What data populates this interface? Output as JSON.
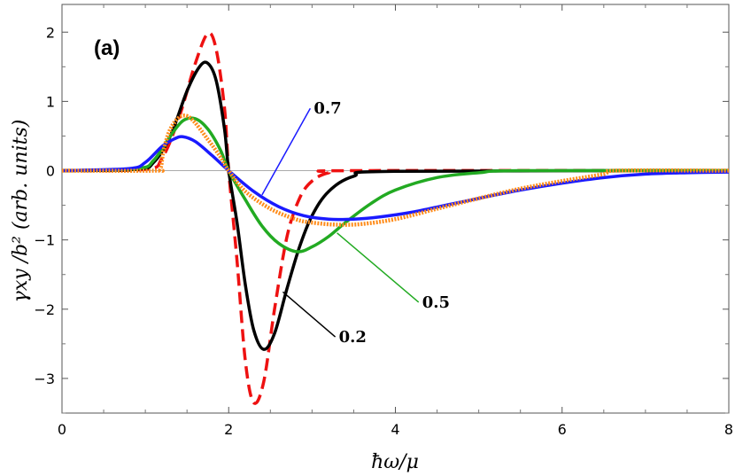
{
  "chart_data": {
    "type": "line",
    "panel_label": "(a)",
    "xlabel": "ħω/μ",
    "ylabel": "γxy /b² (arb. units)",
    "xlim": [
      0,
      8
    ],
    "ylim": [
      -3.5,
      2.4
    ],
    "x_ticks": [
      "0",
      "2",
      "4",
      "6",
      "8"
    ],
    "y_ticks": [
      "2",
      "1",
      "0",
      "−1",
      "−2",
      "−3"
    ],
    "grid": false,
    "annotations": [
      {
        "text": "0.7",
        "color": "#1a1aff",
        "x": 3.0,
        "y": 0.9,
        "target": [
          2.4,
          -0.35
        ]
      },
      {
        "text": "0.5",
        "color": "#22aa22",
        "x": 4.3,
        "y": -1.9,
        "target": [
          3.3,
          -0.9
        ]
      },
      {
        "text": "0.2",
        "color": "#000000",
        "x": 3.3,
        "y": -2.4,
        "target": [
          2.65,
          -1.75
        ]
      }
    ],
    "series": [
      {
        "color": "#ee1111",
        "style": "dashed",
        "points": [
          [
            0,
            0
          ],
          [
            1.0,
            0.02
          ],
          [
            1.2,
            0.18
          ],
          [
            1.4,
            0.75
          ],
          [
            1.6,
            1.55
          ],
          [
            1.75,
            1.98
          ],
          [
            1.85,
            1.75
          ],
          [
            1.95,
            0.9
          ],
          [
            2.0,
            0
          ],
          [
            2.1,
            -1.3
          ],
          [
            2.2,
            -2.75
          ],
          [
            2.3,
            -3.35
          ],
          [
            2.42,
            -3.05
          ],
          [
            2.55,
            -2.0
          ],
          [
            2.7,
            -0.95
          ],
          [
            2.85,
            -0.4
          ],
          [
            3.0,
            -0.15
          ],
          [
            3.2,
            -0.03
          ],
          [
            3.5,
            0
          ],
          [
            8,
            0
          ]
        ]
      },
      {
        "color": "#000000",
        "style": "solid",
        "points": [
          [
            0,
            0
          ],
          [
            0.9,
            0.02
          ],
          [
            1.1,
            0.12
          ],
          [
            1.3,
            0.5
          ],
          [
            1.5,
            1.15
          ],
          [
            1.65,
            1.5
          ],
          [
            1.75,
            1.55
          ],
          [
            1.85,
            1.3
          ],
          [
            1.95,
            0.6
          ],
          [
            2.0,
            0
          ],
          [
            2.1,
            -0.75
          ],
          [
            2.2,
            -1.65
          ],
          [
            2.3,
            -2.3
          ],
          [
            2.42,
            -2.58
          ],
          [
            2.55,
            -2.35
          ],
          [
            2.7,
            -1.7
          ],
          [
            2.85,
            -1.1
          ],
          [
            3.0,
            -0.65
          ],
          [
            3.2,
            -0.3
          ],
          [
            3.5,
            -0.08
          ],
          [
            4.0,
            -0.01
          ],
          [
            8,
            0
          ]
        ]
      },
      {
        "color": "#22aa22",
        "style": "solid",
        "points": [
          [
            0,
            0
          ],
          [
            0.9,
            0.03
          ],
          [
            1.1,
            0.15
          ],
          [
            1.3,
            0.5
          ],
          [
            1.45,
            0.72
          ],
          [
            1.6,
            0.75
          ],
          [
            1.75,
            0.6
          ],
          [
            1.9,
            0.3
          ],
          [
            2.0,
            0
          ],
          [
            2.2,
            -0.42
          ],
          [
            2.4,
            -0.8
          ],
          [
            2.6,
            -1.05
          ],
          [
            2.82,
            -1.17
          ],
          [
            3.0,
            -1.1
          ],
          [
            3.2,
            -0.95
          ],
          [
            3.4,
            -0.75
          ],
          [
            3.7,
            -0.48
          ],
          [
            4.0,
            -0.28
          ],
          [
            4.5,
            -0.1
          ],
          [
            5.0,
            -0.03
          ],
          [
            5.5,
            0
          ],
          [
            8,
            0
          ]
        ]
      },
      {
        "color": "#1a1aff",
        "style": "solid",
        "points": [
          [
            0,
            0
          ],
          [
            0.8,
            0.03
          ],
          [
            1.0,
            0.12
          ],
          [
            1.2,
            0.35
          ],
          [
            1.35,
            0.46
          ],
          [
            1.45,
            0.49
          ],
          [
            1.6,
            0.42
          ],
          [
            1.8,
            0.22
          ],
          [
            2.0,
            0
          ],
          [
            2.3,
            -0.3
          ],
          [
            2.6,
            -0.52
          ],
          [
            2.9,
            -0.65
          ],
          [
            3.2,
            -0.7
          ],
          [
            3.5,
            -0.7
          ],
          [
            3.8,
            -0.67
          ],
          [
            4.2,
            -0.6
          ],
          [
            4.6,
            -0.5
          ],
          [
            5.0,
            -0.4
          ],
          [
            5.5,
            -0.28
          ],
          [
            6.0,
            -0.18
          ],
          [
            6.5,
            -0.1
          ],
          [
            7.0,
            -0.05
          ],
          [
            7.5,
            -0.03
          ],
          [
            8,
            -0.02
          ]
        ]
      },
      {
        "color": "#ff8c1a",
        "style": "dotted",
        "points": [
          [
            0,
            0
          ],
          [
            1.1,
            0
          ],
          [
            1.18,
            0.03
          ],
          [
            1.22,
            0.3
          ],
          [
            1.3,
            0.6
          ],
          [
            1.42,
            0.78
          ],
          [
            1.55,
            0.75
          ],
          [
            1.75,
            0.45
          ],
          [
            1.9,
            0.2
          ],
          [
            2.0,
            0
          ],
          [
            2.2,
            -0.3
          ],
          [
            2.5,
            -0.55
          ],
          [
            2.8,
            -0.7
          ],
          [
            3.0,
            -0.75
          ],
          [
            3.3,
            -0.78
          ],
          [
            3.6,
            -0.77
          ],
          [
            4.0,
            -0.7
          ],
          [
            4.5,
            -0.55
          ],
          [
            5.0,
            -0.4
          ],
          [
            5.5,
            -0.26
          ],
          [
            6.0,
            -0.15
          ],
          [
            6.5,
            -0.05
          ],
          [
            6.65,
            0
          ],
          [
            8,
            0
          ]
        ]
      }
    ]
  }
}
